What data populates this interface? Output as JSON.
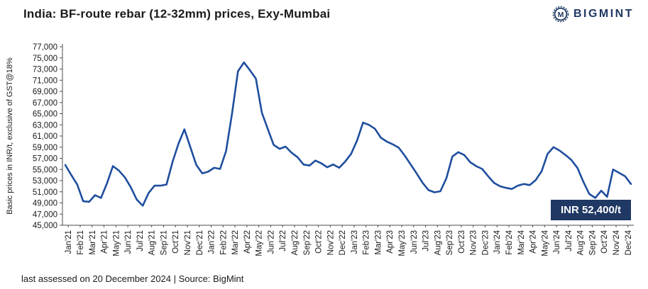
{
  "page": {
    "title": "India: BF-route rebar (12-32mm) prices, Exy-Mumbai",
    "footer": "last assessed on 20 December 2024 | Source: BigMint",
    "brand": {
      "name": "BIGMINT",
      "icon": "circle-m-gear-icon",
      "color": "#1F3864"
    }
  },
  "price_callout": {
    "label": "INR 52,400/t",
    "bg_color": "#1F3864",
    "text_color": "#FFFFFF"
  },
  "chart_data": {
    "type": "line",
    "title": "India: BF-route rebar (12-32mm) prices, Exy-Mumbai",
    "xlabel": "",
    "ylabel": "Basic prices in INR/t, exclusive of GST@18%",
    "ylim": [
      45000,
      77000
    ],
    "y_tick_step": 2000,
    "grid": false,
    "legend": "none",
    "line_color": "#1F4E9E",
    "axis_color": "#4d4d4d",
    "points_per_category": 2,
    "categories": [
      "Jan'21",
      "Feb'21",
      "Mar'21",
      "Apr'21",
      "May'21",
      "Jun'21",
      "Jul'21",
      "Aug'21",
      "Sep'21",
      "Oct'21",
      "Nov'21",
      "Dec'21",
      "Jan'22",
      "Feb'22",
      "Mar'22",
      "Apr'22",
      "May'22",
      "Jun'22",
      "Jul'22",
      "Aug'22",
      "Sep'22",
      "Oct'22",
      "Nov'22",
      "Dec'22",
      "Jan'23",
      "Feb'23",
      "Mar'23",
      "Apr'23",
      "May'23",
      "Jun'23",
      "Jul'23",
      "Aug'23",
      "Sep'23",
      "Oct'23",
      "Nov'23",
      "Dec'23",
      "Jan'24",
      "Feb'24",
      "Mar'24",
      "Apr'24",
      "May'24",
      "Jun'24",
      "Jul'24",
      "Aug'24",
      "Sep'24",
      "Oct'24",
      "Nov'24",
      "Dec'24"
    ],
    "values": [
      55800,
      54000,
      52300,
      49300,
      49200,
      50400,
      49900,
      52500,
      55600,
      54800,
      53600,
      51800,
      49600,
      48500,
      50800,
      52100,
      52100,
      52300,
      56300,
      59600,
      62200,
      59000,
      55800,
      54300,
      54600,
      55300,
      55100,
      58300,
      65000,
      72600,
      74200,
      72800,
      71300,
      65200,
      62300,
      59400,
      58700,
      59100,
      58000,
      57200,
      55900,
      55700,
      56600,
      56100,
      55400,
      55900,
      55300,
      56400,
      57800,
      60200,
      63400,
      63000,
      62300,
      60700,
      60000,
      59500,
      58900,
      57500,
      55900,
      54300,
      52600,
      51300,
      50900,
      51100,
      53400,
      57300,
      58100,
      57600,
      56300,
      55600,
      55100,
      53800,
      52600,
      52000,
      51700,
      51500,
      52100,
      52400,
      52200,
      53100,
      54700,
      57800,
      59000,
      58400,
      57600,
      56700,
      55300,
      52800,
      50600,
      49900,
      51200,
      50100,
      55000,
      54400,
      53800,
      52400
    ],
    "last_value_label": "INR 52,400/t"
  }
}
